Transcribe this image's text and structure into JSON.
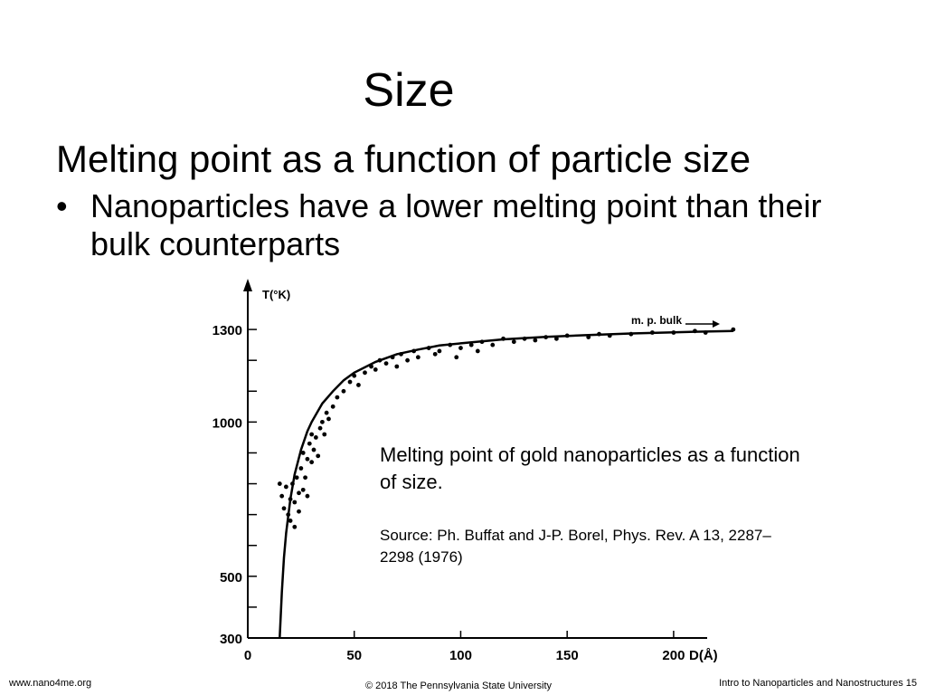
{
  "slide": {
    "title": "Size",
    "subtitle": "Melting point as a function of particle size",
    "bullets": [
      "Nanoparticles have a lower melting point than their bulk counterparts"
    ],
    "caption": "Melting point of gold nanoparticles as a function of size.",
    "source": "Source: Ph. Buffat and J-P. Borel, Phys. Rev. A 13, 2287–2298 (1976)"
  },
  "footer": {
    "left": "www.nano4me.org",
    "center": "© 2018 The Pennsylvania State University",
    "right": "Intro to Nanoparticles and Nanostructures 15"
  },
  "chart_data": {
    "type": "scatter",
    "title": "",
    "xlabel": "D(Å)",
    "ylabel": "T(°K)",
    "xlim": [
      0,
      220
    ],
    "ylim": [
      300,
      1400
    ],
    "x_ticks": [
      0,
      50,
      100,
      150,
      200
    ],
    "y_tick_labels": [
      300,
      500,
      1000,
      1300
    ],
    "y_minor_ticks": [
      300,
      400,
      500,
      600,
      700,
      800,
      900,
      1000,
      1100,
      1200,
      1300
    ],
    "annotations": [
      "m. p. bulk"
    ],
    "grid": false,
    "legend": "none",
    "series": [
      {
        "kind": "points",
        "x": [
          15,
          16,
          17,
          18,
          19,
          20,
          20,
          21,
          22,
          22,
          23,
          24,
          24,
          25,
          26,
          26,
          27,
          28,
          28,
          29,
          30,
          30,
          31,
          32,
          33,
          34,
          35,
          36,
          37,
          38,
          40,
          42,
          45,
          48,
          50,
          52,
          55,
          58,
          60,
          62,
          65,
          68,
          70,
          72,
          75,
          78,
          80,
          85,
          88,
          90,
          95,
          98,
          100,
          105,
          108,
          110,
          115,
          120,
          125,
          130,
          135,
          140,
          145,
          150,
          160,
          165,
          170,
          180,
          190,
          200,
          210,
          215,
          228
        ],
        "y": [
          800,
          760,
          720,
          790,
          700,
          750,
          680,
          800,
          740,
          660,
          820,
          770,
          710,
          850,
          780,
          900,
          820,
          880,
          760,
          930,
          870,
          960,
          910,
          950,
          890,
          980,
          1000,
          960,
          1030,
          1010,
          1050,
          1080,
          1100,
          1130,
          1150,
          1120,
          1160,
          1180,
          1170,
          1200,
          1190,
          1210,
          1180,
          1220,
          1200,
          1230,
          1210,
          1240,
          1220,
          1230,
          1250,
          1210,
          1240,
          1250,
          1230,
          1260,
          1250,
          1270,
          1260,
          1270,
          1265,
          1275,
          1270,
          1280,
          1275,
          1285,
          1280,
          1285,
          1290,
          1290,
          1295,
          1290,
          1300
        ]
      },
      {
        "kind": "curve",
        "x": [
          15,
          16,
          17,
          18,
          20,
          22,
          25,
          28,
          30,
          35,
          40,
          45,
          50,
          60,
          70,
          80,
          90,
          100,
          120,
          140,
          160,
          180,
          200,
          220,
          228
        ],
        "y": [
          300,
          450,
          560,
          640,
          750,
          830,
          910,
          970,
          1000,
          1060,
          1100,
          1135,
          1160,
          1195,
          1220,
          1235,
          1248,
          1255,
          1268,
          1276,
          1282,
          1287,
          1291,
          1294,
          1295
        ]
      }
    ]
  }
}
